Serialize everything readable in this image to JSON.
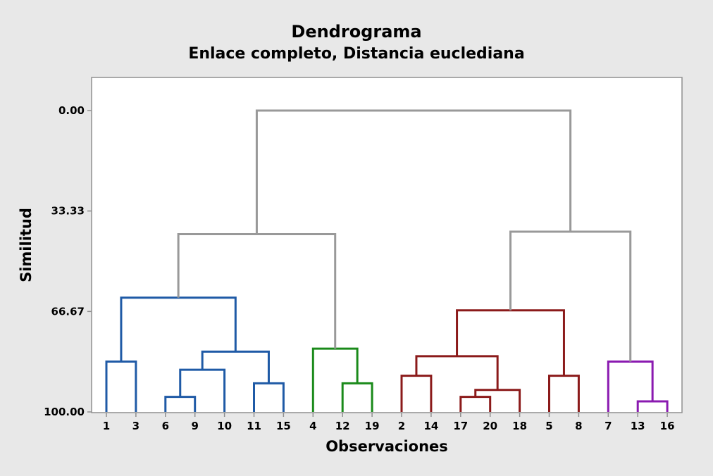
{
  "chart_data": {
    "type": "dendrogram",
    "title": "Dendrograma",
    "subtitle": "Enlace completo, Distancia euclediana",
    "xlabel": "Observaciones",
    "ylabel": "Similitud",
    "ylim": [
      0,
      100
    ],
    "y_ticks": [
      "0.00",
      "33.33",
      "66.67",
      "100.00"
    ],
    "leaves": [
      "1",
      "3",
      "6",
      "9",
      "10",
      "11",
      "15",
      "4",
      "12",
      "19",
      "2",
      "14",
      "17",
      "20",
      "18",
      "5",
      "8",
      "7",
      "13",
      "16"
    ],
    "colors": {
      "blue": "#1f5aa6",
      "green": "#1a8a1a",
      "red": "#8b1a1a",
      "purple": "#8a1ab0",
      "gray": "#999999"
    },
    "merges": [
      {
        "left": "1",
        "right": "3",
        "similarity": 83.3,
        "color": "blue"
      },
      {
        "left": "6",
        "right": "9",
        "similarity": 95.0,
        "color": "blue"
      },
      {
        "left": "6,9",
        "right": "10",
        "similarity": 86.0,
        "color": "blue"
      },
      {
        "left": "11",
        "right": "15",
        "similarity": 90.5,
        "color": "blue"
      },
      {
        "left": "6,9,10",
        "right": "11,15",
        "similarity": 80.0,
        "color": "blue"
      },
      {
        "left": "1,3",
        "right": "6,9,10,11,15",
        "similarity": 62.1,
        "color": "blue"
      },
      {
        "left": "12",
        "right": "19",
        "similarity": 90.5,
        "color": "green"
      },
      {
        "left": "4",
        "right": "12,19",
        "similarity": 79.0,
        "color": "green"
      },
      {
        "left": "1..15",
        "right": "4,12,19",
        "similarity": 41.0,
        "color": "gray"
      },
      {
        "left": "2",
        "right": "14",
        "similarity": 88.0,
        "color": "red"
      },
      {
        "left": "17",
        "right": "20",
        "similarity": 95.0,
        "color": "red"
      },
      {
        "left": "17,20",
        "right": "18",
        "similarity": 92.7,
        "color": "red"
      },
      {
        "left": "2,14",
        "right": "17,20,18",
        "similarity": 81.5,
        "color": "red"
      },
      {
        "left": "5",
        "right": "8",
        "similarity": 88.0,
        "color": "red"
      },
      {
        "left": "2..18",
        "right": "5,8",
        "similarity": 66.3,
        "color": "red"
      },
      {
        "left": "13",
        "right": "16",
        "similarity": 96.5,
        "color": "purple"
      },
      {
        "left": "7",
        "right": "13,16",
        "similarity": 83.3,
        "color": "purple"
      },
      {
        "left": "2..8",
        "right": "7,13,16",
        "similarity": 40.2,
        "color": "gray"
      },
      {
        "left": "1..19",
        "right": "2..16",
        "similarity": 0.0,
        "color": "gray"
      }
    ]
  }
}
